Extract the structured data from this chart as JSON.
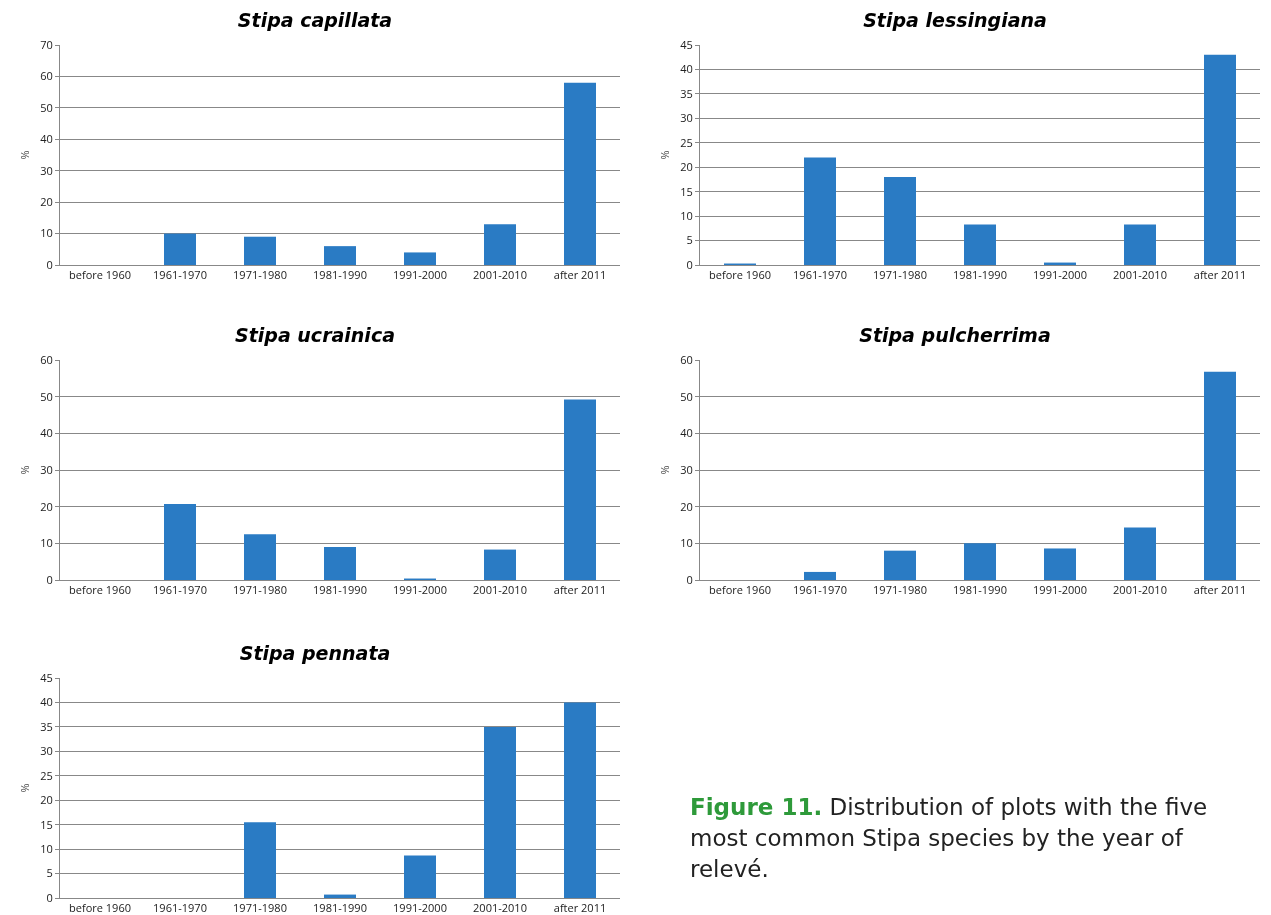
{
  "chart_data": [
    {
      "type": "bar",
      "title": "Stipa capillata",
      "ylabel": "%",
      "categories": [
        "before 1960",
        "1961-1970",
        "1971-1980",
        "1981-1990",
        "1991-2000",
        "2001-2010",
        "after 2011"
      ],
      "values": [
        0,
        10,
        9,
        6,
        4,
        13,
        58
      ],
      "color": "#2a7bc4",
      "ylim": [
        0,
        70
      ],
      "yticks": [
        0,
        10,
        20,
        30,
        40,
        50,
        60,
        70
      ],
      "grid": "y"
    },
    {
      "type": "bar",
      "title": "Stipa lessingiana",
      "ylabel": "%",
      "categories": [
        "before 1960",
        "1961-1970",
        "1971-1980",
        "1981-1990",
        "1991-2000",
        "2001-2010",
        "after 2011"
      ],
      "values": [
        0.3,
        22,
        18,
        8.3,
        0.5,
        8.3,
        43
      ],
      "color": "#2a7bc4",
      "ylim": [
        0,
        45
      ],
      "yticks": [
        0,
        5,
        10,
        15,
        20,
        25,
        30,
        35,
        40,
        45
      ],
      "grid": "y"
    },
    {
      "type": "bar",
      "title": "Stipa ucrainica",
      "ylabel": "%",
      "categories": [
        "before 1960",
        "1961-1970",
        "1971-1980",
        "1981-1990",
        "1991-2000",
        "2001-2010",
        "after 2011"
      ],
      "values": [
        0,
        20.7,
        12.5,
        9,
        0.4,
        8.3,
        49.2
      ],
      "color": "#2a7bc4",
      "ylim": [
        0,
        60
      ],
      "yticks": [
        0,
        10,
        20,
        30,
        40,
        50,
        60
      ],
      "grid": "y"
    },
    {
      "type": "bar",
      "title": "Stipa pulcherrima",
      "ylabel": "%",
      "categories": [
        "before 1960",
        "1961-1970",
        "1971-1980",
        "1981-1990",
        "1991-2000",
        "2001-2010",
        "after 2011"
      ],
      "values": [
        0,
        2.2,
        8,
        10,
        8.6,
        14.3,
        56.8
      ],
      "color": "#2a7bc4",
      "ylim": [
        0,
        60
      ],
      "yticks": [
        0,
        10,
        20,
        30,
        40,
        50,
        60
      ],
      "grid": "y"
    },
    {
      "type": "bar",
      "title": "Stipa pennata",
      "ylabel": "%",
      "categories": [
        "before 1960",
        "1961-1970",
        "1971-1980",
        "1981-1990",
        "1991-2000",
        "2001-2010",
        "after 2011"
      ],
      "values": [
        0,
        0,
        15.5,
        0.7,
        8.7,
        35,
        40
      ],
      "color": "#2a7bc4",
      "ylim": [
        0,
        45
      ],
      "yticks": [
        0,
        5,
        10,
        15,
        20,
        25,
        30,
        35,
        40,
        45
      ],
      "grid": "y",
      "annotations": [
        "Figure 11. Distribution of plots with the five most common Stipa species by the year of relevé."
      ]
    }
  ]
}
